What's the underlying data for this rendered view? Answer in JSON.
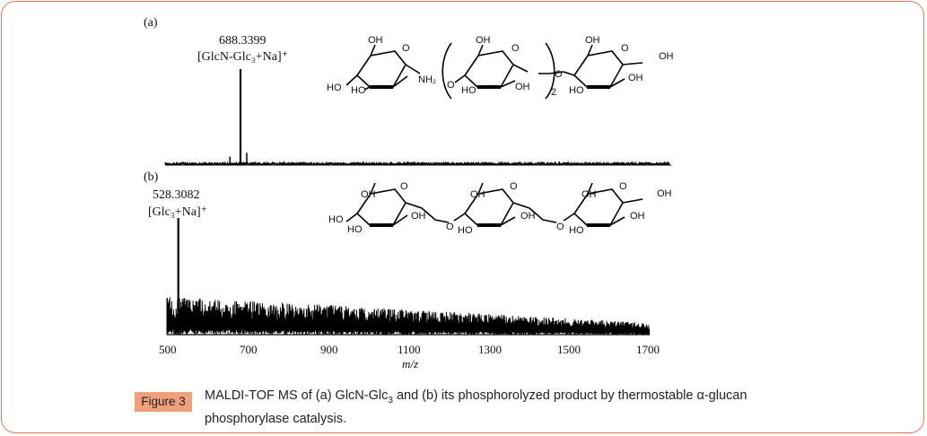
{
  "panels": {
    "a": {
      "label": "(a)",
      "peak_mz": "688.3399",
      "peak_ion": "[GlcN-Glc₃+Na]⁺"
    },
    "b": {
      "label": "(b)",
      "peak_mz": "528.3082",
      "peak_ion": "[Glc₃+Na]⁺"
    }
  },
  "structure_a": {
    "labels": [
      "OH",
      "HO",
      "HO",
      "NH₂",
      "O",
      "O",
      "OH",
      "HO",
      "OH",
      "O",
      "2",
      "O",
      "OH",
      "HO",
      "OH",
      "O",
      "OH"
    ]
  },
  "structure_b": {
    "labels": [
      "OH",
      "HO",
      "HO",
      "OH",
      "O",
      "O",
      "OH",
      "HO",
      "OH",
      "O",
      "O",
      "OH",
      "HO",
      "OH",
      "O",
      "OH"
    ]
  },
  "x_axis": {
    "label": "m/z",
    "ticks": [
      "500",
      "700",
      "900",
      "1100",
      "1300",
      "1500",
      "1700"
    ]
  },
  "chart_data": [
    {
      "type": "line",
      "panel": "a",
      "xlim": [
        500,
        1700
      ],
      "peaks": [
        {
          "x": 688.3399,
          "rel_intensity": 1.0
        },
        {
          "x": 662,
          "rel_intensity": 0.08
        },
        {
          "x": 704,
          "rel_intensity": 0.12
        }
      ],
      "noise_level": 0.02
    },
    {
      "type": "line",
      "panel": "b",
      "xlim": [
        500,
        1700
      ],
      "peaks": [
        {
          "x": 528.3082,
          "rel_intensity": 1.0
        }
      ],
      "noise_level_start": 0.33,
      "noise_level_end": 0.1
    }
  ],
  "caption": {
    "figure_label": "Figure 3",
    "text_before_sub": "MALDI-TOF MS of (a) GlcN-Glc",
    "subscript": "3",
    "text_after_sub": " and (b) its phosphorolyzed product by thermostable α-glucan phosphorylase catalysis."
  }
}
